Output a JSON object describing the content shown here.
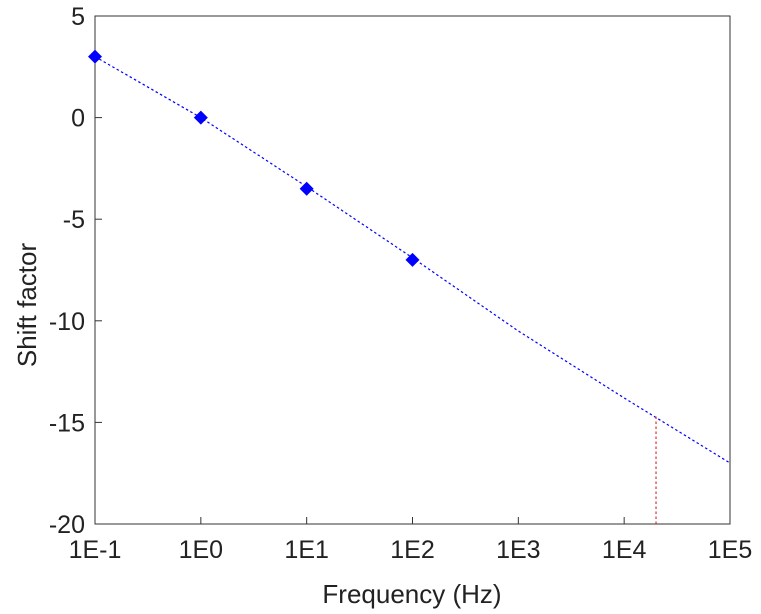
{
  "chart_data": {
    "type": "scatter",
    "title": "",
    "xlabel": "Frequency (Hz)",
    "ylabel": "Shift factor",
    "x_scale": "log",
    "xlim": [
      0.1,
      100000
    ],
    "ylim": [
      -20,
      5
    ],
    "x_ticks": [
      0.1,
      1,
      10,
      100,
      1000,
      10000,
      100000
    ],
    "x_tick_labels": [
      "1E-1",
      "1E0",
      "1E1",
      "1E2",
      "1E3",
      "1E4",
      "1E5"
    ],
    "y_ticks": [
      5,
      0,
      -5,
      -10,
      -15,
      -20
    ],
    "y_tick_labels": [
      "5",
      "0",
      "-5",
      "-10",
      "-15",
      "-20"
    ],
    "grid": false,
    "series": [
      {
        "type": "scatter",
        "marker": "diamond",
        "color": "#0000ff",
        "x": [
          0.1,
          1,
          10,
          100
        ],
        "y": [
          3,
          0,
          -3.5,
          -7
        ]
      },
      {
        "type": "line",
        "style": "dotted",
        "color": "#0000ff",
        "x": [
          0.1,
          1,
          10,
          100,
          1000,
          10000,
          100000
        ],
        "y": [
          3,
          0,
          -3.4,
          -6.9,
          -10.5,
          -13.8,
          -17
        ]
      }
    ],
    "annotations": [
      {
        "type": "vertical-line",
        "style": "dotted",
        "color": "#e03030",
        "x": 20000,
        "y_from": -20,
        "y_to": -14.6
      }
    ]
  }
}
